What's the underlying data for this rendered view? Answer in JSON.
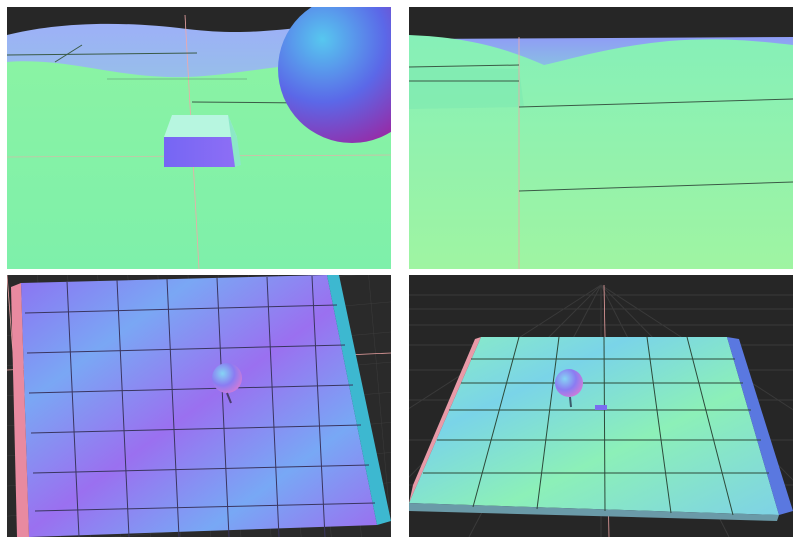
{
  "viewports": [
    {
      "view": "third-person",
      "objects": [
        "terrain",
        "box",
        "sphere"
      ]
    },
    {
      "view": "first-person",
      "objects": [
        "terrain"
      ]
    },
    {
      "view": "top-down",
      "objects": [
        "floor",
        "sphere"
      ]
    },
    {
      "view": "perspective-overview",
      "objects": [
        "floor",
        "sphere",
        "box"
      ]
    }
  ],
  "colors": {
    "background": "#2a2a2a",
    "grid": "#3c3c3c",
    "terrain_green": "#7ef0a6",
    "normal_blue": "#7b7cf2",
    "normal_purple": "#9a68ee"
  }
}
